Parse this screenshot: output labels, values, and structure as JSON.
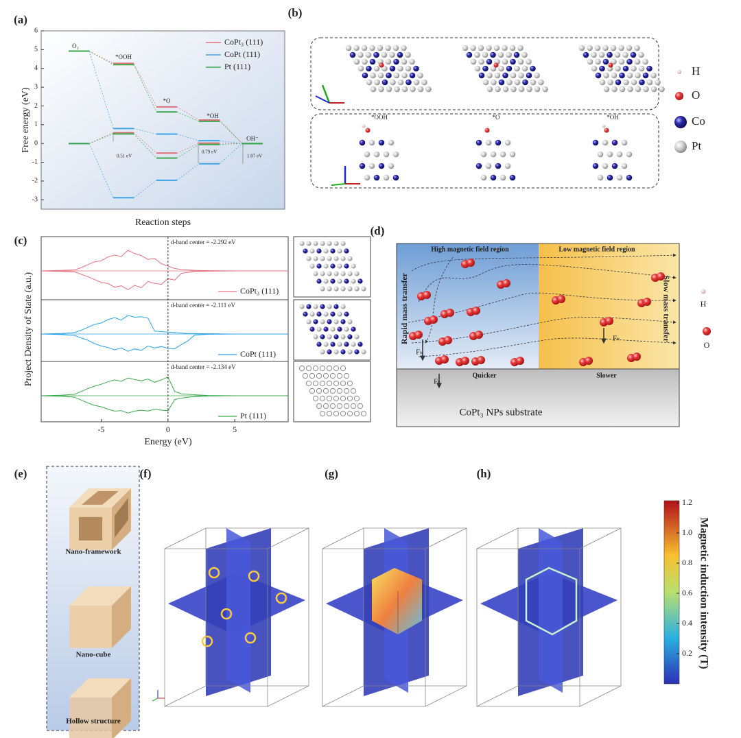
{
  "panel_labels": [
    "(a)",
    "(b)",
    "(c)",
    "(d)",
    "(e)",
    "(f)",
    "(g)",
    "(h)"
  ],
  "panel_a": {
    "ylabel": "Free energy (eV)",
    "xlabel": "Reaction steps",
    "ylim": [
      -3.5,
      6
    ],
    "yticks": [
      6,
      5,
      4,
      3,
      2,
      1,
      0,
      -1,
      -2,
      -3
    ],
    "steps": [
      "O₂",
      "*OOH",
      "*O",
      "*OH",
      "OH⁻"
    ],
    "series": [
      {
        "name": "CoPt₃ (111)",
        "color": "#e0707c",
        "values": [
          4.92,
          4.27,
          1.95,
          1.25,
          0
        ],
        "values_at_potential": [
          0,
          0.58,
          -0.51,
          0.02,
          0
        ]
      },
      {
        "name": "CoPt (111)",
        "color": "#3ea4e6",
        "values": [
          4.92,
          0.8,
          0.5,
          0.15,
          0
        ],
        "values_at_potential": [
          0,
          -2.89,
          -1.96,
          -1.08,
          0
        ]
      },
      {
        "name": "Pt (111)",
        "color": "#3aa94a",
        "values": [
          4.92,
          4.2,
          1.68,
          1.18,
          0
        ],
        "values_at_potential": [
          0,
          0.51,
          -0.78,
          -0.05,
          0
        ]
      }
    ],
    "annotations": [
      "0.51 eV",
      "0.79 eV",
      "1.07 eV"
    ]
  },
  "panel_b": {
    "steps": [
      "*OOH",
      "*O",
      "*OH"
    ],
    "legend": [
      "H",
      "O",
      "Co",
      "Pt"
    ]
  },
  "panel_c": {
    "xlabel": "Energy (eV)",
    "ylabel": "Project Density of State (a.u.)",
    "xlim": [
      -9.5,
      9
    ],
    "xticks": [
      -5,
      0,
      5
    ],
    "x": [
      -9.5,
      -8,
      -7,
      -6.5,
      -6,
      -5.5,
      -5,
      -4.5,
      -4,
      -3.5,
      -3,
      -2.5,
      -2,
      -1.5,
      -1,
      -0.5,
      0,
      0.5,
      1,
      1.5,
      2,
      3,
      5,
      9
    ],
    "spectra": [
      {
        "name": "CoPt₃ (111)",
        "color": "#e8707e",
        "d_band": "d-band center = -2.292 eV",
        "up": [
          0,
          0.1,
          0.2,
          0.7,
          1.3,
          1.9,
          2.1,
          2.9,
          3.3,
          3.0,
          4.3,
          3.6,
          3.2,
          2.4,
          2.6,
          1.5,
          1.0,
          0.5,
          0.3,
          0.2,
          0.1,
          0.05,
          0,
          0
        ],
        "down": [
          0,
          -0.1,
          -0.2,
          -0.7,
          -1.2,
          -1.8,
          -2.4,
          -2.6,
          -3.4,
          -3.1,
          -3.9,
          -3.0,
          -3.5,
          -2.2,
          -2.6,
          -2.8,
          -1.6,
          -1.9,
          -0.5,
          -0.3,
          -0.1,
          -0.05,
          0,
          0
        ]
      },
      {
        "name": "CoPt (111)",
        "color": "#2aa2e6",
        "d_band": "d-band center = -2.111 eV",
        "up": [
          0,
          0.1,
          0.3,
          0.8,
          1.4,
          2.0,
          2.3,
          3.0,
          3.4,
          2.9,
          3.9,
          3.5,
          3.6,
          3.3,
          0.6,
          0.5,
          0.4,
          0.3,
          0.2,
          0.1,
          0.1,
          0.05,
          0,
          0
        ],
        "down": [
          0,
          -0.1,
          -0.3,
          -0.8,
          -1.3,
          -2.0,
          -2.5,
          -2.8,
          -3.3,
          -2.9,
          -3.6,
          -3.1,
          -3.4,
          -2.5,
          -2.9,
          -2.6,
          -3.0,
          -3.1,
          -2.2,
          -1.4,
          -0.2,
          -0.05,
          0,
          0
        ]
      },
      {
        "name": "Pt (111)",
        "color": "#3aa94a",
        "d_band": "d-band center = -2.134 eV",
        "up": [
          0,
          0.1,
          0.3,
          0.9,
          1.5,
          2.0,
          2.4,
          2.9,
          3.3,
          3.0,
          3.7,
          3.4,
          3.1,
          3.5,
          2.8,
          3.3,
          3.9,
          0.9,
          0.4,
          0.3,
          0.2,
          0.05,
          0,
          0
        ],
        "down": [
          0,
          -0.1,
          -0.3,
          -0.9,
          -1.5,
          -2.0,
          -2.3,
          -2.8,
          -3.2,
          -3.1,
          -3.6,
          -3.2,
          -3.0,
          -3.2,
          -2.8,
          -3.0,
          -3.1,
          -0.8,
          -0.5,
          -0.3,
          -0.2,
          -0.05,
          0,
          0
        ]
      }
    ]
  },
  "panel_d": {
    "regions": [
      "High magnetic field region",
      "Low magnetic field region"
    ],
    "sides": [
      "Rapid mass transfer",
      "Slow mass transfer"
    ],
    "speeds": [
      "Quicker",
      "Slower"
    ],
    "force": "Fₖ",
    "substrate": "CoPt₃ NPs substrate",
    "legend": [
      "H",
      "O"
    ]
  },
  "panel_e": {
    "structures": [
      "Nano-framework",
      "Nano-cube",
      "Hollow structure"
    ]
  },
  "colorbar": {
    "label": "Magnetic induction intensity (T)",
    "lim": [
      0,
      1.2
    ],
    "ticks": [
      1.2,
      {
        "value": 1,
        "label": "1.0"
      },
      0.8,
      0.6,
      0.4,
      0.2
    ]
  }
}
